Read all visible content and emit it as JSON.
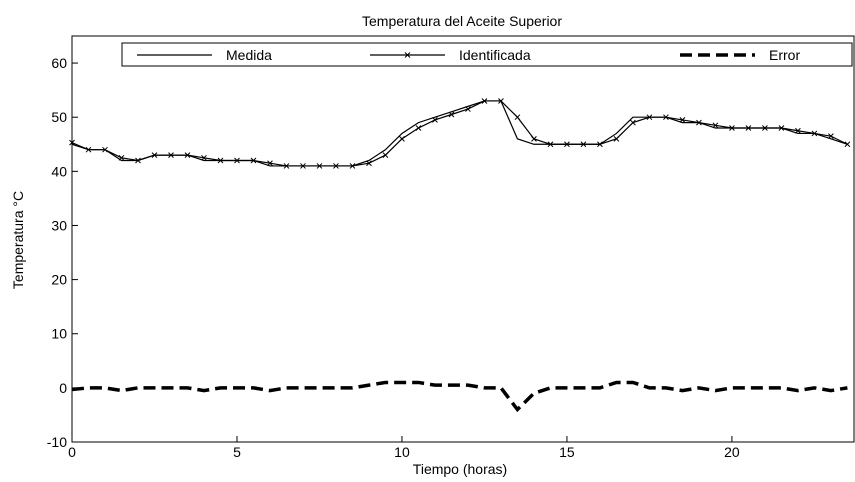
{
  "chart_data": {
    "type": "line",
    "title": "Temperatura del Aceite Superior",
    "x_label": "Tiempo (horas)",
    "y_label": "Temperatura °C",
    "x": [
      0,
      0.5,
      1,
      1.5,
      2,
      2.5,
      3,
      3.5,
      4,
      4.5,
      5,
      5.5,
      6,
      6.5,
      7,
      7.5,
      8,
      8.5,
      9,
      9.5,
      10,
      10.5,
      11,
      11.5,
      12,
      12.5,
      13,
      13.5,
      14,
      14.5,
      15,
      15.5,
      16,
      16.5,
      17,
      17.5,
      18,
      18.5,
      19,
      19.5,
      20,
      20.5,
      21,
      21.5,
      22,
      22.5,
      23,
      23.5
    ],
    "series": [
      {
        "name": "Medida",
        "color": "#000000",
        "style": "solid",
        "values": [
          45,
          44,
          44,
          42,
          42,
          43,
          43,
          43,
          42,
          42,
          42,
          42,
          41,
          41,
          41,
          41,
          41,
          41,
          42,
          44,
          47,
          49,
          50,
          51,
          52,
          53,
          53,
          46,
          45,
          45,
          45,
          45,
          45,
          47,
          50,
          50,
          50,
          49,
          49,
          48,
          48,
          48,
          48,
          48,
          47,
          47,
          46,
          45
        ]
      },
      {
        "name": "Identificada",
        "color": "#000000",
        "style": "marker",
        "values": [
          45.3,
          44,
          44,
          42.5,
          42,
          43,
          43,
          43,
          42.5,
          42,
          42,
          42,
          41.5,
          41,
          41,
          41,
          41,
          41,
          41.5,
          43,
          46,
          48,
          49.5,
          50.5,
          51.5,
          53,
          53,
          50,
          46,
          45,
          45,
          45,
          45,
          46,
          49,
          50,
          50,
          49.5,
          49,
          48.5,
          48,
          48,
          48,
          48,
          47.5,
          47,
          46.5,
          45
        ]
      },
      {
        "name": "Error",
        "color": "#000000",
        "style": "dashed",
        "values": [
          -0.3,
          0,
          0,
          -0.5,
          0,
          0,
          0,
          0,
          -0.5,
          0,
          0,
          0,
          -0.5,
          0,
          0,
          0,
          0,
          0,
          0.5,
          1,
          1,
          1,
          0.5,
          0.5,
          0.5,
          0,
          0,
          -4,
          -1,
          0,
          0,
          0,
          0,
          1,
          1,
          0,
          0,
          -0.5,
          0,
          -0.5,
          0,
          0,
          0,
          0,
          -0.5,
          0,
          -0.5,
          0
        ]
      }
    ],
    "xlim": [
      0,
      23.7
    ],
    "xticks": [
      0,
      5,
      10,
      15,
      20
    ],
    "ylim": [
      -10,
      65
    ],
    "yticks": [
      -10,
      0,
      10,
      20,
      30,
      40,
      50,
      60
    ]
  }
}
